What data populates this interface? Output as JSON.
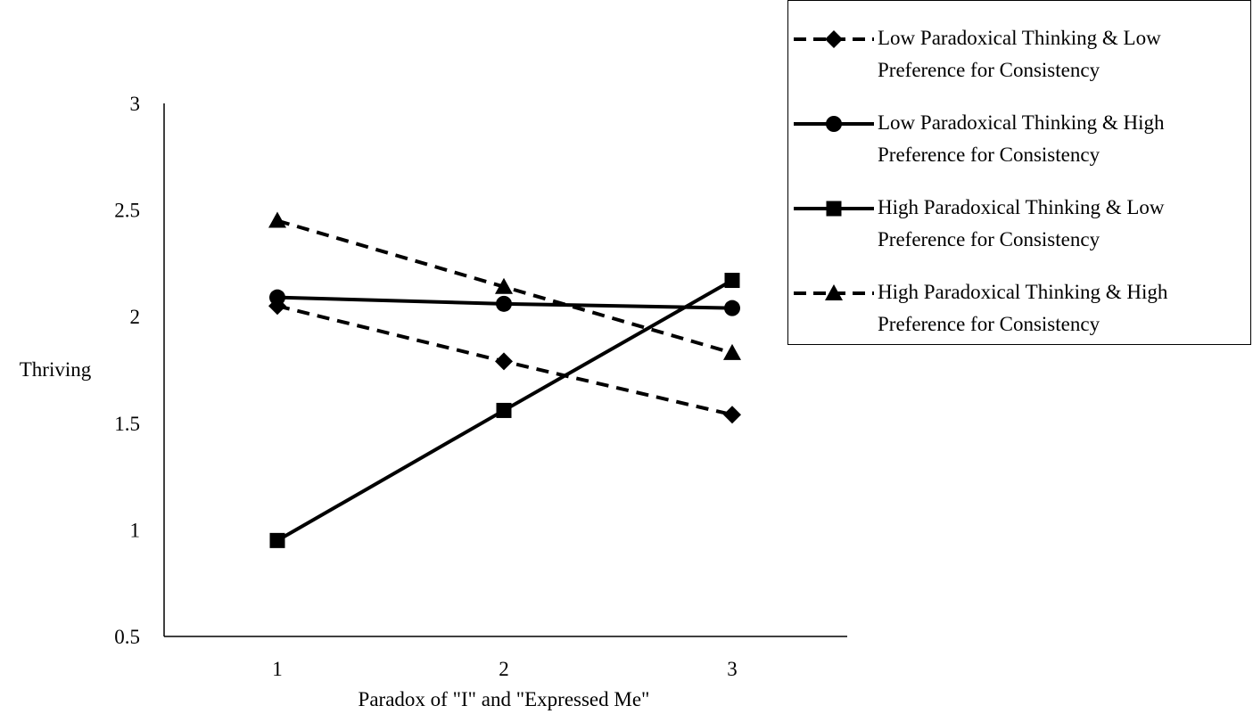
{
  "chart_data": {
    "type": "line",
    "x": [
      1,
      2,
      3
    ],
    "xlabel": "Paradox of \"I\" and \"Expressed Me\"",
    "ylabel": "Thriving",
    "ylim": [
      0.5,
      3
    ],
    "yticks": [
      "0.5",
      "1",
      "1.5",
      "2",
      "2.5",
      "3"
    ],
    "xticks": [
      "1",
      "2",
      "3"
    ],
    "grid": false,
    "legend_position": "top-right",
    "series": [
      {
        "name": "Low Paradoxical Thinking & Low Preference for Consistency",
        "values": [
          2.05,
          1.79,
          1.54
        ],
        "dash": "dashed",
        "marker": "diamond"
      },
      {
        "name": "Low Paradoxical Thinking & High Preference for Consistency",
        "values": [
          2.09,
          2.06,
          2.04
        ],
        "dash": "solid",
        "marker": "circle"
      },
      {
        "name": "High Paradoxical Thinking & Low Preference for Consistency",
        "values": [
          0.95,
          1.56,
          2.17
        ],
        "dash": "solid",
        "marker": "square"
      },
      {
        "name": "High Paradoxical Thinking & High Preference for Consistency",
        "values": [
          2.45,
          2.14,
          1.83
        ],
        "dash": "dashed",
        "marker": "triangle"
      }
    ],
    "line_color": "#000000"
  }
}
